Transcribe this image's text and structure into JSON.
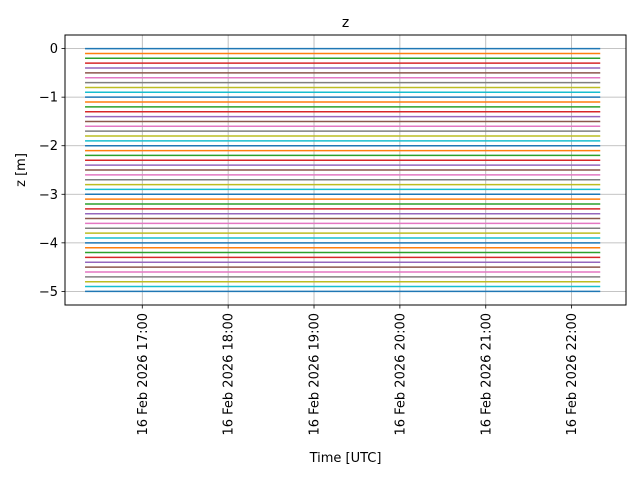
{
  "chart_data": {
    "type": "line",
    "title": "z",
    "xlabel": "Time  [UTC]",
    "ylabel": "z  [m]",
    "x_start": "2026-02-16T16:20",
    "x_end": "2026-02-16T22:20",
    "xlim": [
      "2026-02-16T16:06",
      "2026-02-16T22:38"
    ],
    "ylim": [
      -5.28,
      0.28
    ],
    "yticks": [
      0,
      -1,
      -2,
      -3,
      -4,
      -5
    ],
    "ytick_labels": [
      "0",
      "−1",
      "−2",
      "−3",
      "−4",
      "−5"
    ],
    "xticks": [
      "2026-02-16T17:00",
      "2026-02-16T18:00",
      "2026-02-16T19:00",
      "2026-02-16T20:00",
      "2026-02-16T21:00",
      "2026-02-16T22:00"
    ],
    "xtick_labels": [
      "16 Feb 2026 17:00",
      "16 Feb 2026 18:00",
      "16 Feb 2026 19:00",
      "16 Feb 2026 20:00",
      "16 Feb 2026 21:00",
      "16 Feb 2026 22:00"
    ],
    "grid": true,
    "series": [
      {
        "values": [
          0,
          0
        ]
      },
      {
        "values": [
          -0.1,
          -0.1
        ]
      },
      {
        "values": [
          -0.2,
          -0.2
        ]
      },
      {
        "values": [
          -0.3,
          -0.3
        ]
      },
      {
        "values": [
          -0.4,
          -0.4
        ]
      },
      {
        "values": [
          -0.5,
          -0.5
        ]
      },
      {
        "values": [
          -0.6,
          -0.6
        ]
      },
      {
        "values": [
          -0.7,
          -0.7
        ]
      },
      {
        "values": [
          -0.8,
          -0.8
        ]
      },
      {
        "values": [
          -0.9,
          -0.9
        ]
      },
      {
        "values": [
          -1.0,
          -1.0
        ]
      },
      {
        "values": [
          -1.1,
          -1.1
        ]
      },
      {
        "values": [
          -1.2,
          -1.2
        ]
      },
      {
        "values": [
          -1.3,
          -1.3
        ]
      },
      {
        "values": [
          -1.4,
          -1.4
        ]
      },
      {
        "values": [
          -1.5,
          -1.5
        ]
      },
      {
        "values": [
          -1.6,
          -1.6
        ]
      },
      {
        "values": [
          -1.7,
          -1.7
        ]
      },
      {
        "values": [
          -1.8,
          -1.8
        ]
      },
      {
        "values": [
          -1.9,
          -1.9
        ]
      },
      {
        "values": [
          -2.0,
          -2.0
        ]
      },
      {
        "values": [
          -2.1,
          -2.1
        ]
      },
      {
        "values": [
          -2.2,
          -2.2
        ]
      },
      {
        "values": [
          -2.3,
          -2.3
        ]
      },
      {
        "values": [
          -2.4,
          -2.4
        ]
      },
      {
        "values": [
          -2.5,
          -2.5
        ]
      },
      {
        "values": [
          -2.6,
          -2.6
        ]
      },
      {
        "values": [
          -2.7,
          -2.7
        ]
      },
      {
        "values": [
          -2.8,
          -2.8
        ]
      },
      {
        "values": [
          -2.9,
          -2.9
        ]
      },
      {
        "values": [
          -3.0,
          -3.0
        ]
      },
      {
        "values": [
          -3.1,
          -3.1
        ]
      },
      {
        "values": [
          -3.2,
          -3.2
        ]
      },
      {
        "values": [
          -3.3,
          -3.3
        ]
      },
      {
        "values": [
          -3.4,
          -3.4
        ]
      },
      {
        "values": [
          -3.5,
          -3.5
        ]
      },
      {
        "values": [
          -3.6,
          -3.6
        ]
      },
      {
        "values": [
          -3.7,
          -3.7
        ]
      },
      {
        "values": [
          -3.8,
          -3.8
        ]
      },
      {
        "values": [
          -3.9,
          -3.9
        ]
      },
      {
        "values": [
          -4.0,
          -4.0
        ]
      },
      {
        "values": [
          -4.1,
          -4.1
        ]
      },
      {
        "values": [
          -4.2,
          -4.2
        ]
      },
      {
        "values": [
          -4.3,
          -4.3
        ]
      },
      {
        "values": [
          -4.4,
          -4.4
        ]
      },
      {
        "values": [
          -4.5,
          -4.5
        ]
      },
      {
        "values": [
          -4.6,
          -4.6
        ]
      },
      {
        "values": [
          -4.7,
          -4.7
        ]
      },
      {
        "values": [
          -4.8,
          -4.8
        ]
      },
      {
        "values": [
          -4.9,
          -4.9
        ]
      },
      {
        "values": [
          -5.0,
          -5.0
        ]
      }
    ],
    "colors": [
      "#1f77b4",
      "#ff7f0e",
      "#2ca02c",
      "#d62728",
      "#9467bd",
      "#8c564b",
      "#e377c2",
      "#7f7f7f",
      "#bcbd22",
      "#17becf"
    ]
  }
}
